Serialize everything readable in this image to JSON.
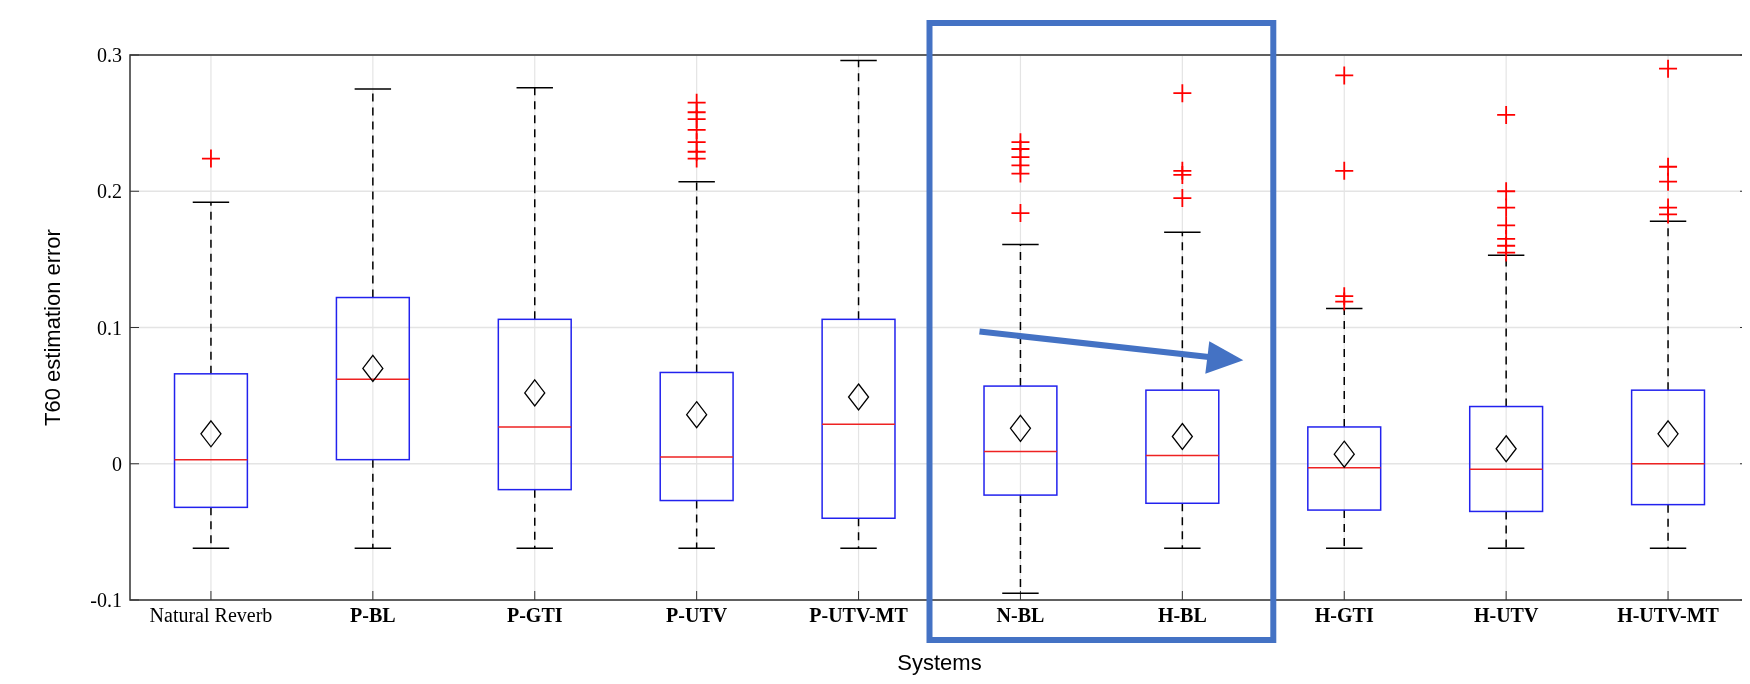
{
  "chart_data": {
    "type": "box",
    "xlabel": "Systems",
    "ylabel": "T60 estimation error",
    "categories": [
      "Natural Reverb",
      "P-BL",
      "P-GTI",
      "P-UTV",
      "P-UTV-MT",
      "N-BL",
      "H-BL",
      "H-GTI",
      "H-UTV",
      "H-UTV-MT"
    ],
    "ylim": [
      -0.1,
      0.3
    ],
    "yticks": [
      -0.1,
      0,
      0.1,
      0.2,
      0.3
    ],
    "grid": true,
    "boxes": [
      {
        "low": -0.062,
        "q1": -0.032,
        "median": 0.003,
        "q3": 0.066,
        "high": 0.192,
        "mean": 0.022,
        "outliers": [
          0.224
        ]
      },
      {
        "low": -0.062,
        "q1": 0.003,
        "median": 0.062,
        "q3": 0.122,
        "high": 0.275,
        "mean": 0.07
      },
      {
        "low": -0.062,
        "q1": -0.019,
        "median": 0.027,
        "q3": 0.106,
        "high": 0.276,
        "mean": 0.052
      },
      {
        "low": -0.062,
        "q1": -0.027,
        "median": 0.005,
        "q3": 0.067,
        "high": 0.207,
        "mean": 0.036,
        "outliers": [
          0.224,
          0.229,
          0.236,
          0.245,
          0.253,
          0.258,
          0.265
        ]
      },
      {
        "low": -0.062,
        "q1": -0.04,
        "median": 0.029,
        "q3": 0.106,
        "high": 0.296,
        "mean": 0.049
      },
      {
        "low": -0.095,
        "q1": -0.023,
        "median": 0.009,
        "q3": 0.057,
        "high": 0.161,
        "mean": 0.026,
        "outliers": [
          0.184,
          0.213,
          0.219,
          0.225,
          0.231,
          0.236
        ]
      },
      {
        "low": -0.062,
        "q1": -0.029,
        "median": 0.006,
        "q3": 0.054,
        "high": 0.17,
        "mean": 0.02,
        "outliers": [
          0.195,
          0.212,
          0.215,
          0.272
        ]
      },
      {
        "low": -0.062,
        "q1": -0.034,
        "median": -0.003,
        "q3": 0.027,
        "high": 0.114,
        "mean": 0.007,
        "outliers": [
          0.119,
          0.123,
          0.215,
          0.285
        ]
      },
      {
        "low": -0.062,
        "q1": -0.035,
        "median": -0.004,
        "q3": 0.042,
        "high": 0.153,
        "mean": 0.011,
        "outliers": [
          0.155,
          0.16,
          0.165,
          0.175,
          0.188,
          0.2,
          0.256
        ]
      },
      {
        "low": -0.062,
        "q1": -0.03,
        "median": 0,
        "q3": 0.054,
        "high": 0.178,
        "mean": 0.022,
        "outliers": [
          0.183,
          0.188,
          0.207,
          0.218,
          0.29
        ]
      }
    ]
  }
}
